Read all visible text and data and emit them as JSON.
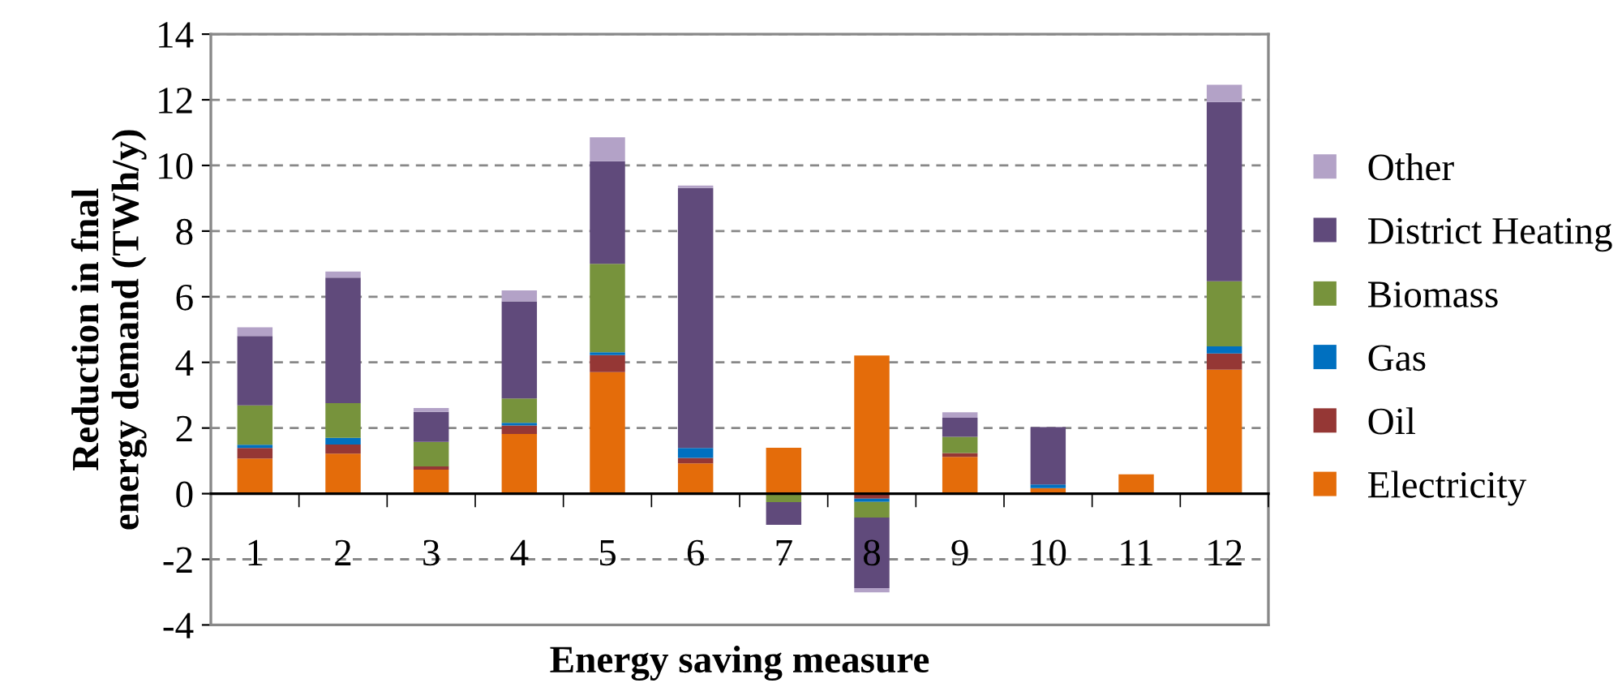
{
  "chart_data": {
    "type": "bar",
    "stacked": true,
    "xlabel": "Energy saving measure",
    "ylabel": "Reduction in fnal\nenergy demand (TWh/y)",
    "categories": [
      "1",
      "2",
      "3",
      "4",
      "5",
      "6",
      "7",
      "8",
      "9",
      "10",
      "11",
      "12"
    ],
    "series": [
      {
        "name": "Electricity",
        "color": "#e46c0a",
        "values": [
          1.07,
          1.22,
          0.73,
          1.82,
          3.7,
          0.92,
          1.4,
          4.21,
          1.12,
          0.17,
          0.59,
          3.78
        ]
      },
      {
        "name": "Oil",
        "color": "#953735",
        "values": [
          0.32,
          0.28,
          0.1,
          0.26,
          0.52,
          0.17,
          0,
          -0.15,
          0.12,
          0,
          0,
          0.49
        ]
      },
      {
        "name": "Gas",
        "color": "#0070c0",
        "values": [
          0.1,
          0.2,
          0,
          0.08,
          0.09,
          0.3,
          0,
          -0.1,
          0,
          0.11,
          0,
          0.22
        ]
      },
      {
        "name": "Biomass",
        "color": "#77933c",
        "values": [
          1.2,
          1.06,
          0.75,
          0.74,
          2.69,
          0,
          -0.26,
          -0.48,
          0.49,
          0,
          0,
          1.98
        ]
      },
      {
        "name": "District Heating",
        "color": "#604a7b",
        "values": [
          2.11,
          3.82,
          0.91,
          2.96,
          3.13,
          7.92,
          -0.69,
          -2.15,
          0.58,
          1.75,
          0,
          5.46
        ]
      },
      {
        "name": "Other",
        "color": "#b3a2c7",
        "values": [
          0.27,
          0.19,
          0.12,
          0.33,
          0.73,
          0.08,
          0,
          -0.13,
          0.17,
          0,
          0,
          0.53
        ]
      }
    ],
    "ylim": [
      -4,
      14
    ],
    "yticks": [
      -4,
      -2,
      0,
      2,
      4,
      6,
      8,
      10,
      12,
      14
    ],
    "grid": "y",
    "legend": "right"
  }
}
